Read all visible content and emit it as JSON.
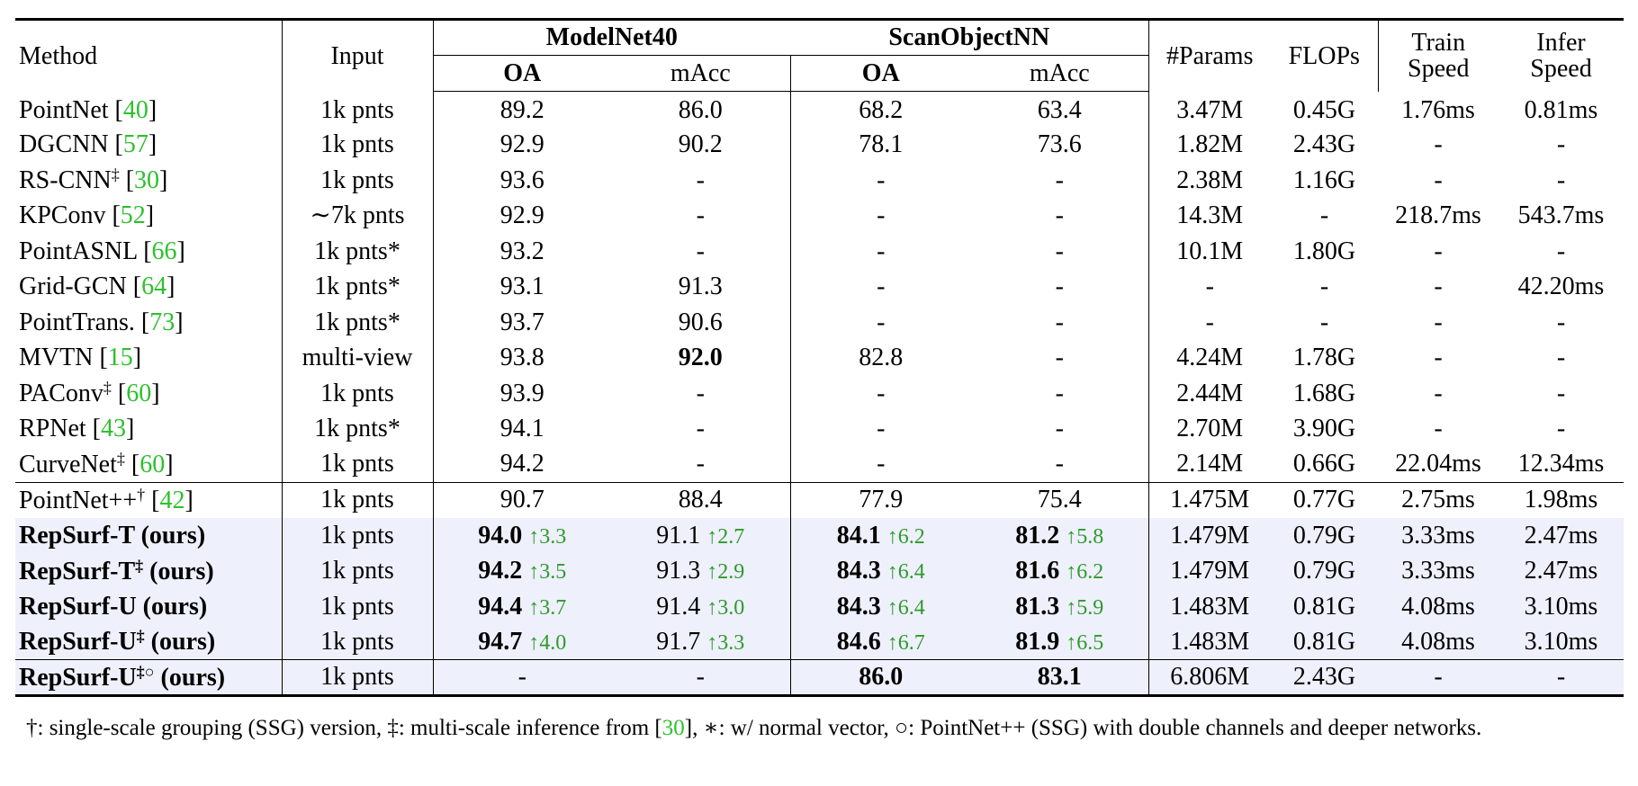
{
  "table": {
    "header": {
      "top": [
        {
          "text": [
            "Method"
          ],
          "rowspan": 2,
          "align": "left"
        },
        {
          "text": [
            "Input"
          ],
          "rowspan": 2
        },
        {
          "text": [
            "ModelNet40"
          ],
          "colspan": 2,
          "bold": true
        },
        {
          "text": [
            "ScanObjectNN"
          ],
          "colspan": 2,
          "bold": true
        },
        {
          "text": [
            "#Params"
          ],
          "rowspan": 2
        },
        {
          "text": [
            "FLOPs"
          ],
          "rowspan": 2
        },
        {
          "text": [
            "Train",
            "Speed"
          ],
          "rowspan": 2
        },
        {
          "text": [
            "Infer",
            "Speed"
          ],
          "rowspan": 2
        }
      ],
      "sub": [
        {
          "text": [
            "OA"
          ],
          "bold": true
        },
        {
          "text": [
            "mAcc"
          ]
        },
        {
          "text": [
            "OA"
          ],
          "bold": true
        },
        {
          "text": [
            "mAcc"
          ]
        }
      ]
    },
    "groups": [
      [
        {
          "shaded": false,
          "cells": [
            [
              "PointNet [",
              {
                "t": "40",
                "s": "cite"
              },
              "]"
            ],
            [
              "1k pnts"
            ],
            [
              "89.2"
            ],
            [
              "86.0"
            ],
            [
              "68.2"
            ],
            [
              "63.4"
            ],
            [
              "3.47M"
            ],
            [
              "0.45G"
            ],
            [
              "1.76ms"
            ],
            [
              "0.81ms"
            ]
          ]
        },
        {
          "shaded": false,
          "cells": [
            [
              "DGCNN [",
              {
                "t": "57",
                "s": "cite"
              },
              "]"
            ],
            [
              "1k pnts"
            ],
            [
              "92.9"
            ],
            [
              "90.2"
            ],
            [
              "78.1"
            ],
            [
              "73.6"
            ],
            [
              "1.82M"
            ],
            [
              "2.43G"
            ],
            [
              "-"
            ],
            [
              "-"
            ]
          ]
        },
        {
          "shaded": false,
          "cells": [
            [
              "RS-CNN",
              {
                "t": "‡",
                "s": "sup"
              },
              " [",
              {
                "t": "30",
                "s": "cite"
              },
              "]"
            ],
            [
              "1k pnts"
            ],
            [
              "93.6"
            ],
            [
              "-"
            ],
            [
              "-"
            ],
            [
              "-"
            ],
            [
              "2.38M"
            ],
            [
              "1.16G"
            ],
            [
              "-"
            ],
            [
              "-"
            ]
          ]
        },
        {
          "shaded": false,
          "cells": [
            [
              "KPConv [",
              {
                "t": "52",
                "s": "cite"
              },
              "]"
            ],
            [
              "∼7k pnts"
            ],
            [
              "92.9"
            ],
            [
              "-"
            ],
            [
              "-"
            ],
            [
              "-"
            ],
            [
              "14.3M"
            ],
            [
              "-"
            ],
            [
              "218.7ms"
            ],
            [
              "543.7ms"
            ]
          ]
        },
        {
          "shaded": false,
          "cells": [
            [
              "PointASNL [",
              {
                "t": "66",
                "s": "cite"
              },
              "]"
            ],
            [
              "1k pnts*"
            ],
            [
              "93.2"
            ],
            [
              "-"
            ],
            [
              "-"
            ],
            [
              "-"
            ],
            [
              "10.1M"
            ],
            [
              "1.80G"
            ],
            [
              "-"
            ],
            [
              "-"
            ]
          ]
        },
        {
          "shaded": false,
          "cells": [
            [
              "Grid-GCN [",
              {
                "t": "64",
                "s": "cite"
              },
              "]"
            ],
            [
              "1k pnts*"
            ],
            [
              "93.1"
            ],
            [
              "91.3"
            ],
            [
              "-"
            ],
            [
              "-"
            ],
            [
              "-"
            ],
            [
              "-"
            ],
            [
              "-"
            ],
            [
              "42.20ms"
            ]
          ]
        },
        {
          "shaded": false,
          "cells": [
            [
              "PointTrans. [",
              {
                "t": "73",
                "s": "cite"
              },
              "]"
            ],
            [
              "1k pnts*"
            ],
            [
              "93.7"
            ],
            [
              "90.6"
            ],
            [
              "-"
            ],
            [
              "-"
            ],
            [
              "-"
            ],
            [
              "-"
            ],
            [
              "-"
            ],
            [
              "-"
            ]
          ]
        },
        {
          "shaded": false,
          "cells": [
            [
              "MVTN [",
              {
                "t": "15",
                "s": "cite"
              },
              "]"
            ],
            [
              "multi-view"
            ],
            [
              "93.8"
            ],
            [
              {
                "t": "92.0",
                "s": "b"
              }
            ],
            [
              "82.8"
            ],
            [
              "-"
            ],
            [
              "4.24M"
            ],
            [
              "1.78G"
            ],
            [
              "-"
            ],
            [
              "-"
            ]
          ]
        },
        {
          "shaded": false,
          "cells": [
            [
              "PAConv",
              {
                "t": "‡",
                "s": "sup"
              },
              " [",
              {
                "t": "60",
                "s": "cite"
              },
              "]"
            ],
            [
              "1k pnts"
            ],
            [
              "93.9"
            ],
            [
              "-"
            ],
            [
              "-"
            ],
            [
              "-"
            ],
            [
              "2.44M"
            ],
            [
              "1.68G"
            ],
            [
              "-"
            ],
            [
              "-"
            ]
          ]
        },
        {
          "shaded": false,
          "cells": [
            [
              "RPNet [",
              {
                "t": "43",
                "s": "cite"
              },
              "]"
            ],
            [
              "1k pnts*"
            ],
            [
              "94.1"
            ],
            [
              "-"
            ],
            [
              "-"
            ],
            [
              "-"
            ],
            [
              "2.70M"
            ],
            [
              "3.90G"
            ],
            [
              "-"
            ],
            [
              "-"
            ]
          ]
        },
        {
          "shaded": false,
          "cells": [
            [
              "CurveNet",
              {
                "t": "‡",
                "s": "sup"
              },
              " [",
              {
                "t": "60",
                "s": "cite"
              },
              "]"
            ],
            [
              "1k pnts"
            ],
            [
              "94.2"
            ],
            [
              "-"
            ],
            [
              "-"
            ],
            [
              "-"
            ],
            [
              "2.14M"
            ],
            [
              "0.66G"
            ],
            [
              "22.04ms"
            ],
            [
              "12.34ms"
            ]
          ]
        }
      ],
      [
        {
          "shaded": false,
          "cells": [
            [
              "PointNet++",
              {
                "t": "†",
                "s": "sup"
              },
              " [",
              {
                "t": "42",
                "s": "cite"
              },
              "]"
            ],
            [
              "1k pnts"
            ],
            [
              "90.7"
            ],
            [
              "88.4"
            ],
            [
              "77.9"
            ],
            [
              "75.4"
            ],
            [
              "1.475M"
            ],
            [
              "0.77G"
            ],
            [
              "2.75ms"
            ],
            [
              "1.98ms"
            ]
          ]
        },
        {
          "shaded": true,
          "cells": [
            [
              {
                "t": "RepSurf-T (ours)",
                "s": "b"
              }
            ],
            [
              "1k pnts"
            ],
            [
              {
                "t": "94.0",
                "s": "b"
              },
              {
                "t": "↑3.3",
                "s": "delta"
              }
            ],
            [
              "91.1",
              {
                "t": "↑2.7",
                "s": "delta"
              }
            ],
            [
              {
                "t": "84.1",
                "s": "b"
              },
              {
                "t": "↑6.2",
                "s": "delta"
              }
            ],
            [
              {
                "t": "81.2",
                "s": "b"
              },
              {
                "t": "↑5.8",
                "s": "delta"
              }
            ],
            [
              "1.479M"
            ],
            [
              "0.79G"
            ],
            [
              "3.33ms"
            ],
            [
              "2.47ms"
            ]
          ]
        },
        {
          "shaded": true,
          "cells": [
            [
              {
                "t": "RepSurf-T",
                "s": "b"
              },
              {
                "t": "‡",
                "s": "bsup"
              },
              {
                "t": " (ours)",
                "s": "b"
              }
            ],
            [
              "1k pnts"
            ],
            [
              {
                "t": "94.2",
                "s": "b"
              },
              {
                "t": "↑3.5",
                "s": "delta"
              }
            ],
            [
              "91.3",
              {
                "t": "↑2.9",
                "s": "delta"
              }
            ],
            [
              {
                "t": "84.3",
                "s": "b"
              },
              {
                "t": "↑6.4",
                "s": "delta"
              }
            ],
            [
              {
                "t": "81.6",
                "s": "b"
              },
              {
                "t": "↑6.2",
                "s": "delta"
              }
            ],
            [
              "1.479M"
            ],
            [
              "0.79G"
            ],
            [
              "3.33ms"
            ],
            [
              "2.47ms"
            ]
          ]
        },
        {
          "shaded": true,
          "cells": [
            [
              {
                "t": "RepSurf-U (ours)",
                "s": "b"
              }
            ],
            [
              "1k pnts"
            ],
            [
              {
                "t": "94.4",
                "s": "b"
              },
              {
                "t": "↑3.7",
                "s": "delta"
              }
            ],
            [
              "91.4",
              {
                "t": "↑3.0",
                "s": "delta"
              }
            ],
            [
              {
                "t": "84.3",
                "s": "b"
              },
              {
                "t": "↑6.4",
                "s": "delta"
              }
            ],
            [
              {
                "t": "81.3",
                "s": "b"
              },
              {
                "t": "↑5.9",
                "s": "delta"
              }
            ],
            [
              "1.483M"
            ],
            [
              "0.81G"
            ],
            [
              "4.08ms"
            ],
            [
              "3.10ms"
            ]
          ]
        },
        {
          "shaded": true,
          "cells": [
            [
              {
                "t": "RepSurf-U",
                "s": "b"
              },
              {
                "t": "‡",
                "s": "bsup"
              },
              {
                "t": " (ours)",
                "s": "b"
              }
            ],
            [
              "1k pnts"
            ],
            [
              {
                "t": "94.7",
                "s": "b"
              },
              {
                "t": "↑4.0",
                "s": "delta"
              }
            ],
            [
              "91.7",
              {
                "t": "↑3.3",
                "s": "delta"
              }
            ],
            [
              {
                "t": "84.6",
                "s": "b"
              },
              {
                "t": "↑6.7",
                "s": "delta"
              }
            ],
            [
              {
                "t": "81.9",
                "s": "b"
              },
              {
                "t": "↑6.5",
                "s": "delta"
              }
            ],
            [
              "1.483M"
            ],
            [
              "0.81G"
            ],
            [
              "4.08ms"
            ],
            [
              "3.10ms"
            ]
          ]
        }
      ],
      [
        {
          "shaded": true,
          "cells": [
            [
              {
                "t": "RepSurf-U",
                "s": "b"
              },
              {
                "t": "‡○",
                "s": "bsup"
              },
              {
                "t": " (ours)",
                "s": "b"
              }
            ],
            [
              "1k pnts"
            ],
            [
              "-"
            ],
            [
              "-"
            ],
            [
              {
                "t": "86.0",
                "s": "b"
              }
            ],
            [
              {
                "t": "83.1",
                "s": "b"
              }
            ],
            [
              "6.806M"
            ],
            [
              "2.43G"
            ],
            [
              "-"
            ],
            [
              "-"
            ]
          ]
        }
      ]
    ],
    "footnote": [
      "†: single-scale grouping (SSG) version, ‡: multi-scale inference from [",
      {
        "t": "30",
        "s": "cite"
      },
      "], ∗: w/ normal vector, ○: PointNet++ (SSG) with double channels and deeper networks."
    ]
  }
}
